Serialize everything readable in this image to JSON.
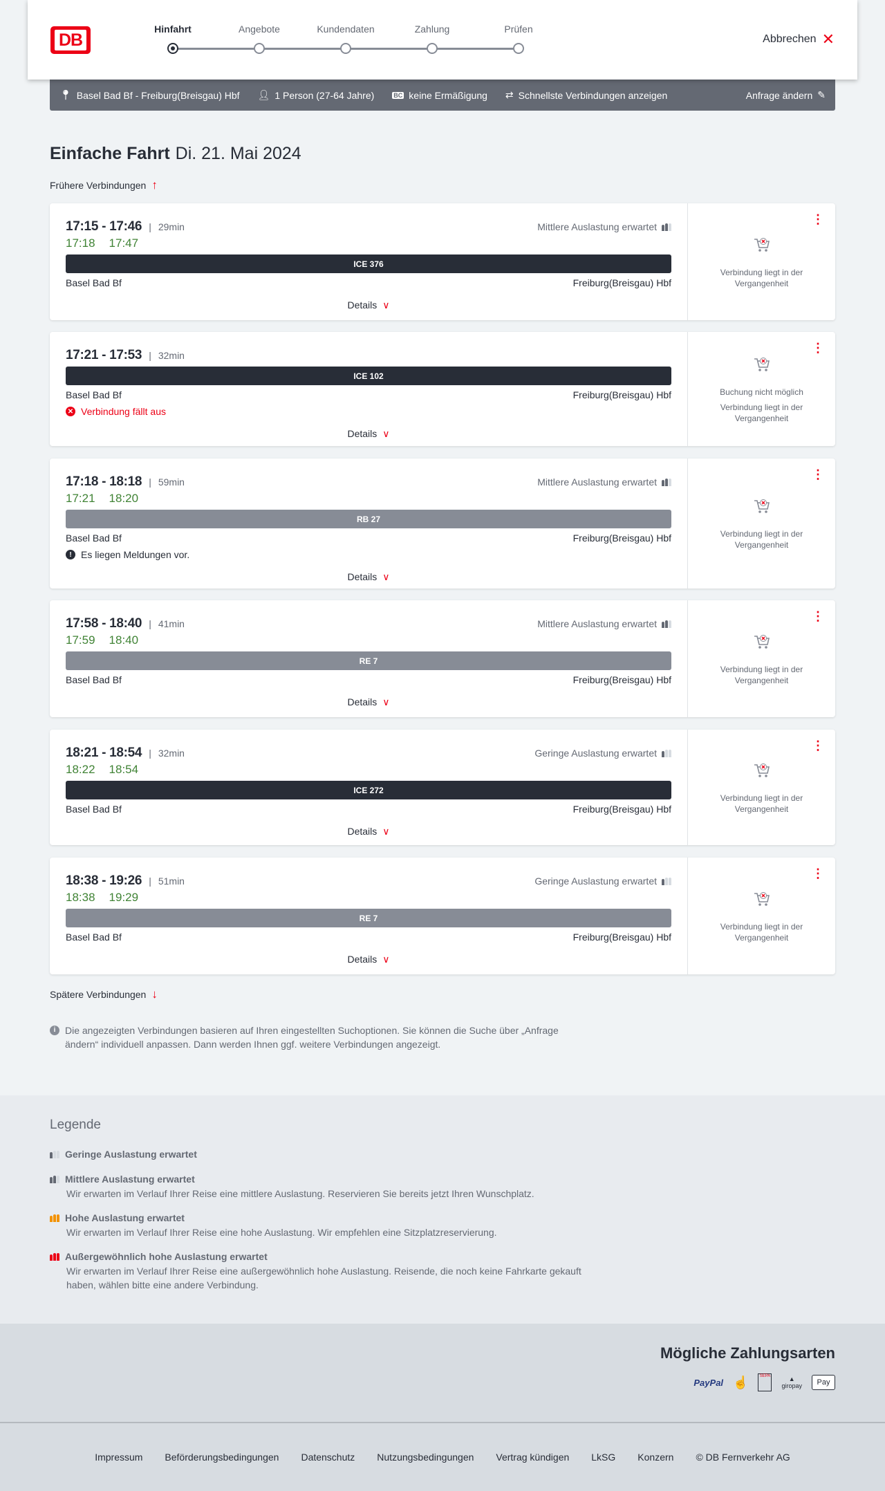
{
  "header": {
    "logo": "DB",
    "steps": [
      "Hinfahrt",
      "Angebote",
      "Kundendaten",
      "Zahlung",
      "Prüfen"
    ],
    "active_step": 0,
    "cancel": "Abbrechen"
  },
  "search": {
    "route": "Basel Bad Bf - Freiburg(Breisgau) Hbf",
    "passengers": "1 Person (27-64 Jahre)",
    "discount": "keine Ermäßigung",
    "discount_badge": "BC",
    "fastest": "Schnellste Verbindungen anzeigen",
    "change": "Anfrage ändern"
  },
  "title": {
    "main": "Einfache Fahrt",
    "date": "Di. 21. Mai 2024"
  },
  "earlier": "Frühere Verbindungen",
  "later": "Spätere Verbindungen",
  "details_label": "Details",
  "connections": [
    {
      "time": "17:15 - 17:46",
      "duration": "29min",
      "occupancy": "Mittlere Auslastung erwartet",
      "occ_level": 2,
      "delay_dep": "17:18",
      "delay_arr": "17:47",
      "train": "ICE 376",
      "train_type": "dark",
      "from": "Basel Bad Bf",
      "to": "Freiburg(Breisgau) Hbf",
      "message": "",
      "status": [
        "Verbindung liegt in der Vergangenheit"
      ]
    },
    {
      "time": "17:21 - 17:53",
      "duration": "32min",
      "occupancy": "",
      "occ_level": 0,
      "delay_dep": "",
      "delay_arr": "",
      "train": "ICE 102",
      "train_type": "dark",
      "from": "Basel Bad Bf",
      "to": "Freiburg(Breisgau) Hbf",
      "message": "Verbindung fällt aus",
      "message_type": "error",
      "status": [
        "Buchung nicht möglich",
        "Verbindung liegt in der Vergangenheit"
      ]
    },
    {
      "time": "17:18 - 18:18",
      "duration": "59min",
      "occupancy": "Mittlere Auslastung erwartet",
      "occ_level": 2,
      "delay_dep": "17:21",
      "delay_arr": "18:20",
      "train": "RB 27",
      "train_type": "grey",
      "from": "Basel Bad Bf",
      "to": "Freiburg(Breisgau) Hbf",
      "message": "Es liegen Meldungen vor.",
      "message_type": "warning",
      "status": [
        "Verbindung liegt in der Vergangenheit"
      ]
    },
    {
      "time": "17:58 - 18:40",
      "duration": "41min",
      "occupancy": "Mittlere Auslastung erwartet",
      "occ_level": 2,
      "delay_dep": "17:59",
      "delay_arr": "18:40",
      "train": "RE 7",
      "train_type": "grey",
      "from": "Basel Bad Bf",
      "to": "Freiburg(Breisgau) Hbf",
      "message": "",
      "status": [
        "Verbindung liegt in der Vergangenheit"
      ]
    },
    {
      "time": "18:21 - 18:54",
      "duration": "32min",
      "occupancy": "Geringe Auslastung erwartet",
      "occ_level": 1,
      "delay_dep": "18:22",
      "delay_arr": "18:54",
      "train": "ICE 272",
      "train_type": "dark",
      "from": "Basel Bad Bf",
      "to": "Freiburg(Breisgau) Hbf",
      "message": "",
      "status": [
        "Verbindung liegt in der Vergangenheit"
      ]
    },
    {
      "time": "18:38 - 19:26",
      "duration": "51min",
      "occupancy": "Geringe Auslastung erwartet",
      "occ_level": 1,
      "delay_dep": "18:38",
      "delay_arr": "19:29",
      "train": "RE 7",
      "train_type": "grey",
      "from": "Basel Bad Bf",
      "to": "Freiburg(Breisgau) Hbf",
      "message": "",
      "status": [
        "Verbindung liegt in der Vergangenheit"
      ]
    }
  ],
  "info": "Die angezeigten Verbindungen basieren auf Ihren eingestellten Suchoptionen. Sie können die Suche über „Anfrage ändern“ individuell anpassen. Dann werden Ihnen ggf. weitere Verbindungen angezeigt.",
  "legend": {
    "title": "Legende",
    "items": [
      {
        "title": "Geringe Auslastung erwartet",
        "desc": "",
        "level": 1,
        "color": "#646973"
      },
      {
        "title": "Mittlere Auslastung erwartet",
        "desc": "Wir erwarten im Verlauf Ihrer Reise eine mittlere Auslastung. Reservieren Sie bereits jetzt Ihren Wunschplatz.",
        "level": 2,
        "color": "#646973"
      },
      {
        "title": "Hohe Auslastung erwartet",
        "desc": "Wir erwarten im Verlauf Ihrer Reise eine hohe Auslastung. Wir empfehlen eine Sitzplatzreservierung.",
        "level": 3,
        "color": "#f39200"
      },
      {
        "title": "Außergewöhnlich hohe Auslastung erwartet",
        "desc": "Wir erwarten im Verlauf Ihrer Reise eine außergewöhnlich hohe Auslastung. Reisende, die noch keine Fahrkarte gekauft haben, wählen bitte eine andere Verbindung.",
        "level": 4,
        "color": "#ec0016"
      }
    ]
  },
  "payment": {
    "title": "Mögliche Zahlungsarten",
    "methods": [
      "PayPal",
      "Kreditkarte",
      "SEPA",
      "giropay",
      "Pay"
    ]
  },
  "footer": {
    "links": [
      "Impressum",
      "Beförderungsbedingungen",
      "Datenschutz",
      "Nutzungsbedingungen",
      "Vertrag kündigen",
      "LkSG",
      "Konzern",
      "© DB Fernverkehr AG"
    ]
  },
  "colors": {
    "accent": "#ec0016",
    "delay_green": "#408335",
    "bar_dark": "#282d37",
    "bar_grey": "#878c96"
  }
}
